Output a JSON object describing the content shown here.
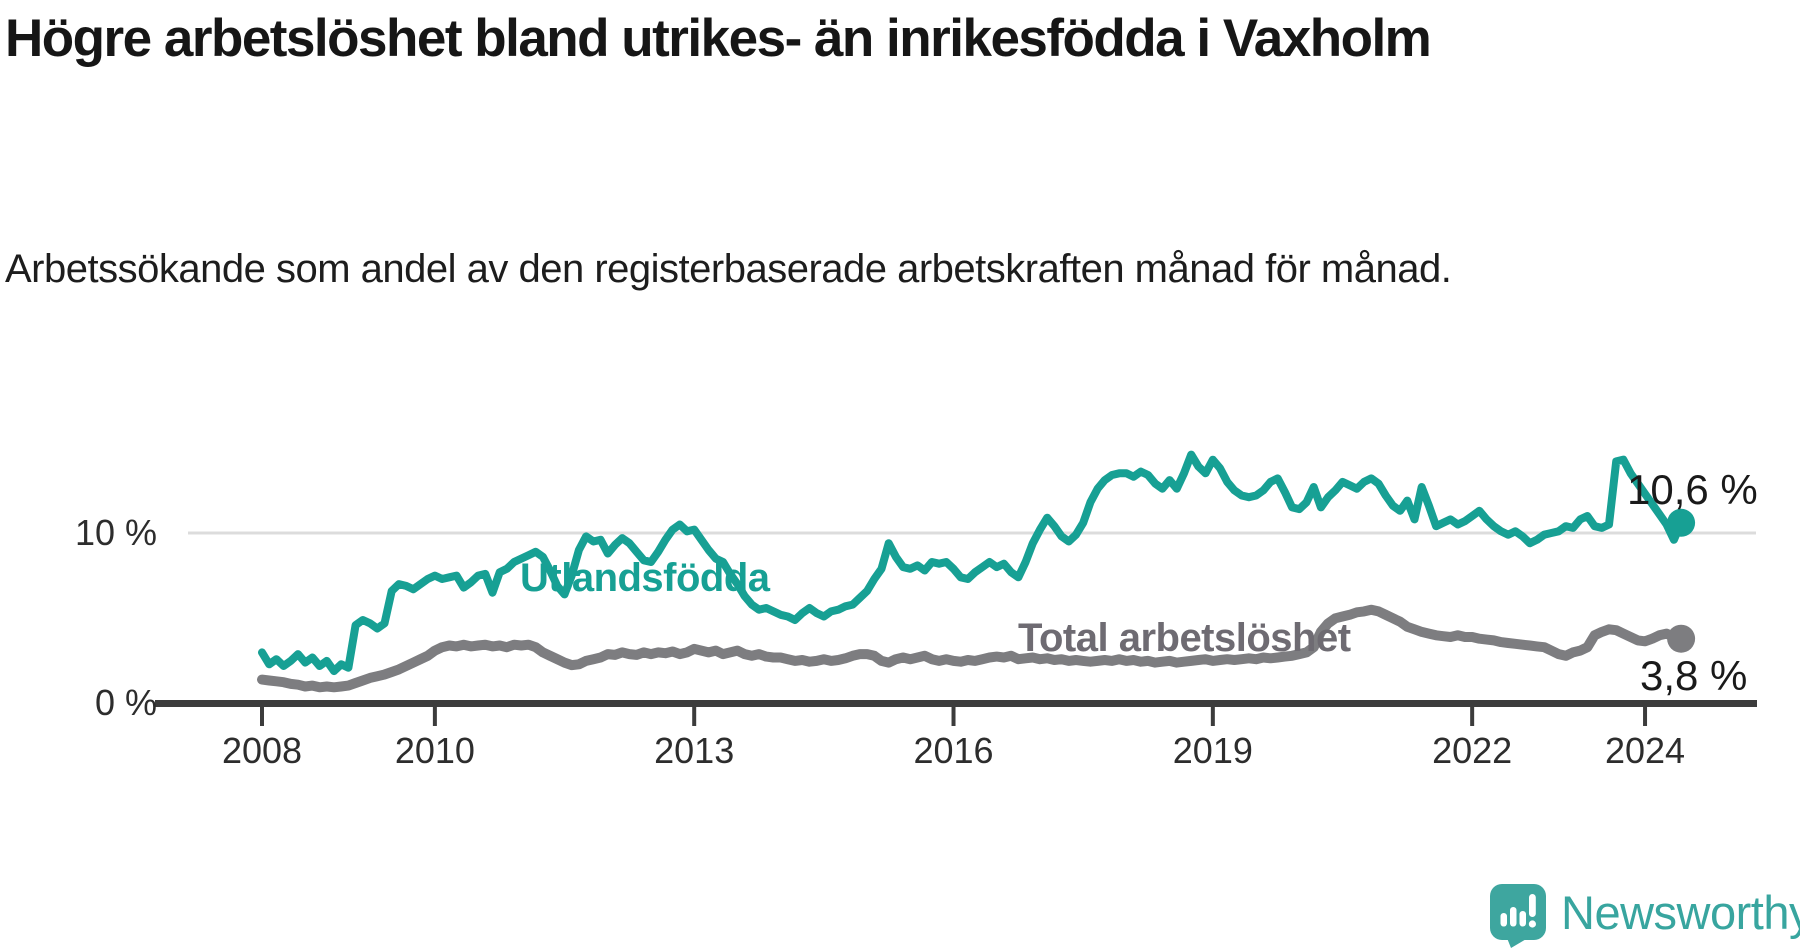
{
  "header": {
    "title": "Högre arbetslöshet bland utrikes- än inrikesfödda i Vaxholm",
    "subtitle": "Arbetssökande som andel av den registerbaserade arbetskraften månad för månad."
  },
  "chart_data": {
    "type": "line",
    "unit": "percent",
    "frequency": "monthly",
    "x_start_year": 2008,
    "x_end": "2024-06",
    "x_ticks": [
      2008,
      2010,
      2013,
      2016,
      2019,
      2022,
      2024
    ],
    "y_ticks": [
      {
        "value": 0,
        "label": "0 %",
        "gridline": false
      },
      {
        "value": 10,
        "label": "10 %",
        "gridline": true
      }
    ],
    "colors": {
      "utlandsfodda_line": "#17A094",
      "total_line": "#7D7D80",
      "total_label": "#6E6B72",
      "grid": "#DCDCDC",
      "axis": "#3C3C3C",
      "text": "#1a1a1a"
    },
    "series": [
      {
        "name": "Utlandsfödda",
        "end_label": "10,6 %",
        "end_value": 10.6,
        "values": [
          3.0,
          2.3,
          2.6,
          2.2,
          2.5,
          2.9,
          2.4,
          2.7,
          2.2,
          2.5,
          1.9,
          2.3,
          2.1,
          4.6,
          4.9,
          4.7,
          4.4,
          4.7,
          6.6,
          7.0,
          6.9,
          6.7,
          7.0,
          7.3,
          7.5,
          7.3,
          7.4,
          7.5,
          6.8,
          7.1,
          7.5,
          7.6,
          6.5,
          7.7,
          7.9,
          8.3,
          8.5,
          8.7,
          8.9,
          8.6,
          7.8,
          6.9,
          6.4,
          7.5,
          9.0,
          9.8,
          9.5,
          9.6,
          8.8,
          9.3,
          9.7,
          9.4,
          8.9,
          8.4,
          8.3,
          8.9,
          9.6,
          10.2,
          10.5,
          10.1,
          10.2,
          9.6,
          9.0,
          8.5,
          8.3,
          7.6,
          7.0,
          6.3,
          5.8,
          5.5,
          5.6,
          5.4,
          5.2,
          5.1,
          4.9,
          5.3,
          5.6,
          5.3,
          5.1,
          5.4,
          5.5,
          5.7,
          5.8,
          6.2,
          6.6,
          7.3,
          7.9,
          9.4,
          8.6,
          8.0,
          7.9,
          8.1,
          7.8,
          8.3,
          8.2,
          8.3,
          7.9,
          7.4,
          7.3,
          7.7,
          8.0,
          8.3,
          8.0,
          8.2,
          7.7,
          7.4,
          8.3,
          9.4,
          10.2,
          10.9,
          10.4,
          9.8,
          9.5,
          9.9,
          10.6,
          11.8,
          12.6,
          13.1,
          13.4,
          13.5,
          13.5,
          13.3,
          13.6,
          13.4,
          12.9,
          12.6,
          13.1,
          12.6,
          13.5,
          14.6,
          13.9,
          13.5,
          14.3,
          13.8,
          13.0,
          12.5,
          12.2,
          12.1,
          12.2,
          12.5,
          13.0,
          13.2,
          12.4,
          11.5,
          11.4,
          11.8,
          12.7,
          11.5,
          12.1,
          12.5,
          13.0,
          12.8,
          12.6,
          13.0,
          13.2,
          12.9,
          12.2,
          11.6,
          11.3,
          11.9,
          10.8,
          12.7,
          11.6,
          10.4,
          10.6,
          10.8,
          10.5,
          10.7,
          11.0,
          11.3,
          10.8,
          10.4,
          10.1,
          9.9,
          10.1,
          9.8,
          9.4,
          9.6,
          9.9,
          10.0,
          10.1,
          10.4,
          10.3,
          10.8,
          11.0,
          10.4,
          10.3,
          10.5,
          14.2,
          14.3,
          13.5,
          12.9,
          12.3,
          11.7,
          11.1,
          10.5,
          9.6,
          10.6
        ]
      },
      {
        "name": "Total arbetslöshet",
        "end_label": "3,8 %",
        "end_value": 3.8,
        "values": [
          1.4,
          1.35,
          1.3,
          1.25,
          1.15,
          1.1,
          1.0,
          1.05,
          0.95,
          1.0,
          0.95,
          1.0,
          1.05,
          1.2,
          1.35,
          1.5,
          1.6,
          1.7,
          1.85,
          2.0,
          2.2,
          2.4,
          2.6,
          2.8,
          3.1,
          3.3,
          3.4,
          3.35,
          3.45,
          3.35,
          3.4,
          3.45,
          3.35,
          3.4,
          3.3,
          3.45,
          3.4,
          3.45,
          3.3,
          3.0,
          2.8,
          2.6,
          2.4,
          2.25,
          2.3,
          2.5,
          2.6,
          2.7,
          2.9,
          2.85,
          3.0,
          2.9,
          2.85,
          3.0,
          2.9,
          3.0,
          2.95,
          3.05,
          2.9,
          3.0,
          3.2,
          3.1,
          3.0,
          3.1,
          2.9,
          3.0,
          3.1,
          2.9,
          2.8,
          2.9,
          2.75,
          2.7,
          2.7,
          2.6,
          2.5,
          2.55,
          2.45,
          2.5,
          2.6,
          2.5,
          2.55,
          2.65,
          2.8,
          2.9,
          2.9,
          2.8,
          2.5,
          2.4,
          2.6,
          2.7,
          2.6,
          2.7,
          2.8,
          2.6,
          2.5,
          2.6,
          2.5,
          2.45,
          2.55,
          2.5,
          2.6,
          2.7,
          2.75,
          2.7,
          2.8,
          2.6,
          2.65,
          2.7,
          2.6,
          2.65,
          2.55,
          2.6,
          2.5,
          2.55,
          2.5,
          2.45,
          2.5,
          2.55,
          2.5,
          2.6,
          2.5,
          2.55,
          2.45,
          2.5,
          2.4,
          2.45,
          2.5,
          2.4,
          2.45,
          2.5,
          2.55,
          2.6,
          2.5,
          2.55,
          2.6,
          2.55,
          2.6,
          2.65,
          2.6,
          2.7,
          2.65,
          2.7,
          2.75,
          2.8,
          2.9,
          3.0,
          3.3,
          4.2,
          4.7,
          5.0,
          5.1,
          5.2,
          5.35,
          5.4,
          5.5,
          5.4,
          5.2,
          5.0,
          4.8,
          4.5,
          4.35,
          4.2,
          4.1,
          4.0,
          3.95,
          3.9,
          4.0,
          3.9,
          3.9,
          3.8,
          3.75,
          3.7,
          3.6,
          3.55,
          3.5,
          3.45,
          3.4,
          3.35,
          3.3,
          3.1,
          2.9,
          2.8,
          3.0,
          3.1,
          3.3,
          4.0,
          4.2,
          4.35,
          4.3,
          4.1,
          3.9,
          3.7,
          3.65,
          3.8,
          4.0,
          4.1,
          3.9,
          3.8
        ]
      }
    ]
  },
  "footer": {
    "brand": "Newsworthy"
  }
}
